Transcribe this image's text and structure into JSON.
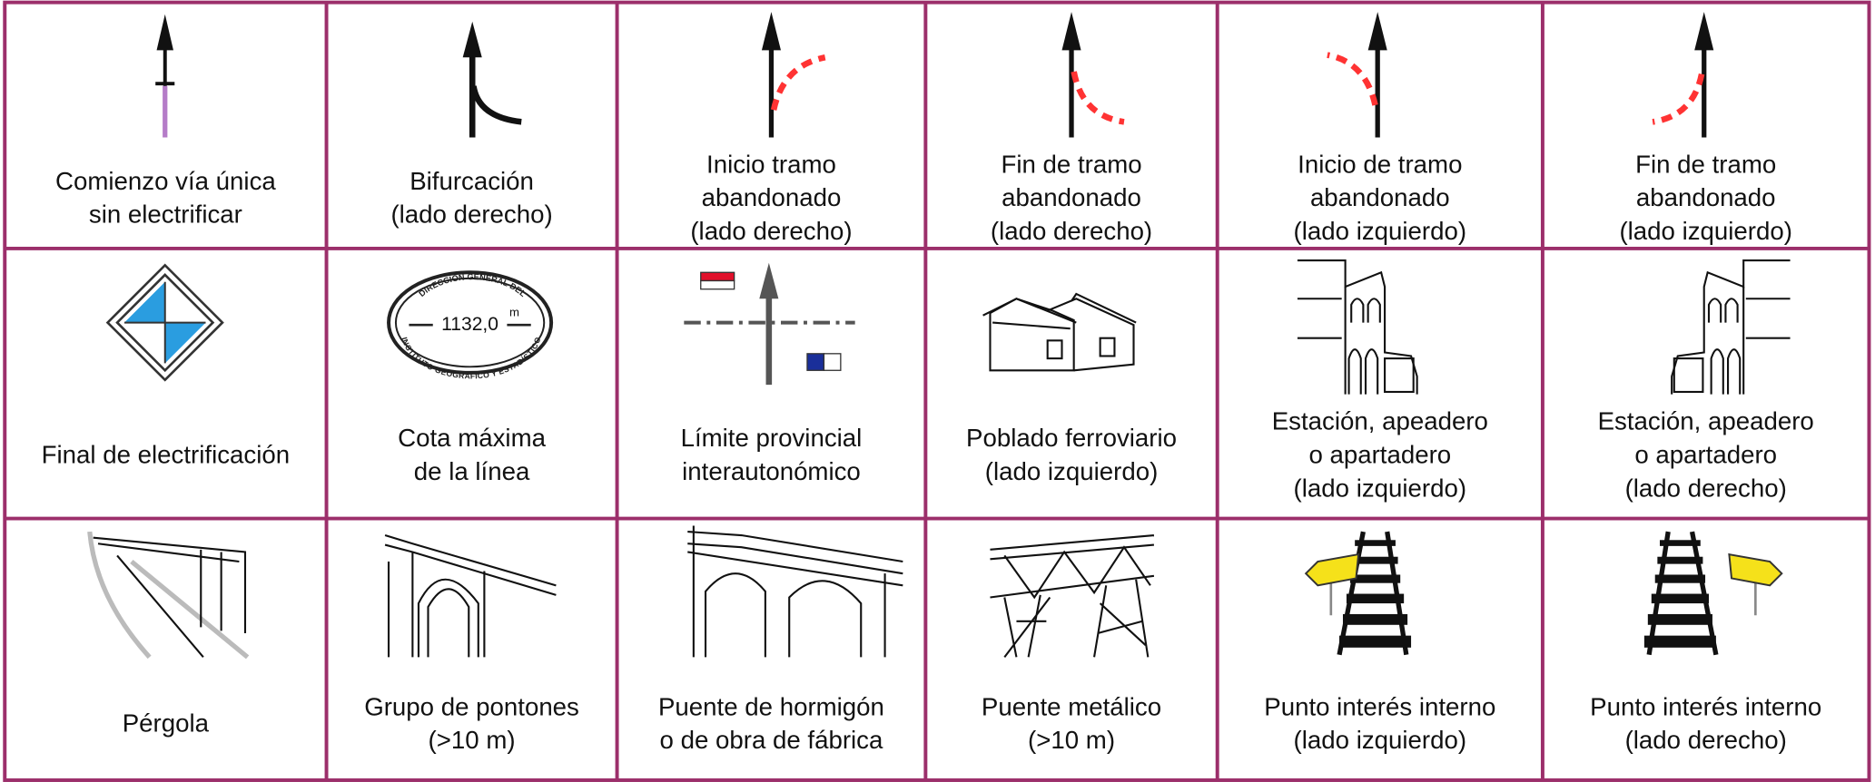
{
  "table": {
    "rows": [
      [
        [
          "Comienzo vía única",
          "sin electrificar"
        ],
        [
          "Bifurcación",
          "(lado derecho)"
        ],
        [
          "Inicio tramo",
          "abandonado",
          "(lado derecho)"
        ],
        [
          "Fin de tramo",
          "abandonado",
          "(lado derecho)"
        ],
        [
          "Inicio de tramo",
          "abandonado",
          "(lado izquierdo)"
        ],
        [
          "Fin de tramo",
          "abandonado",
          "(lado izquierdo)"
        ]
      ],
      [
        [
          "Final de electrificación"
        ],
        [
          "Cota máxima",
          "de la línea"
        ],
        [
          "Límite provincial",
          "interautonómico"
        ],
        [
          "Poblado ferroviario",
          "(lado izquierdo)"
        ],
        [
          "Estación, apeadero",
          "o apartadero",
          "(lado izquierdo)"
        ],
        [
          "Estación, apeadero",
          "o apartadero",
          "(lado derecho)"
        ]
      ],
      [
        [
          "Pérgola"
        ],
        [
          "Grupo de pontones",
          "(>10 m)"
        ],
        [
          "Puente de hormigón",
          "o de obra de fábrica"
        ],
        [
          "Puente metálico",
          "(>10 m)"
        ],
        [
          "Punto interés interno",
          "(lado izquierdo)"
        ],
        [
          "Punto interés interno",
          "(lado derecho)"
        ]
      ]
    ]
  },
  "elevation_mark": {
    "value": "1132,0",
    "unit": "m",
    "top": "DIRECCIÓN GENERAL DEL",
    "bottom": "INSTITUTO GEOGRÁFICO Y ESTADÍSTICO"
  }
}
